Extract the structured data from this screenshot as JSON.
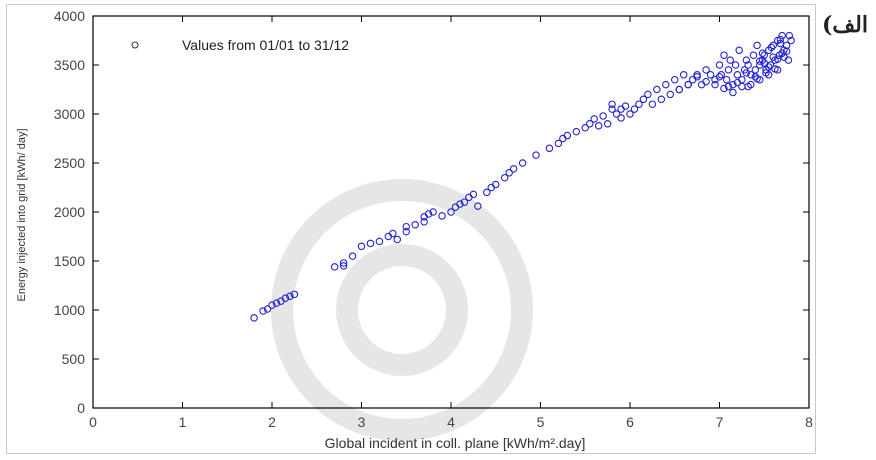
{
  "figure_label": "الف)",
  "chart_data": {
    "type": "scatter",
    "legend": {
      "text": "Values from 01/01 to 31/12",
      "placement": "top-left"
    },
    "xlabel": "Global incident in coll. plane [kWh/m².day]",
    "ylabel": "Energy  injected  into  grid  [kWh/ day]",
    "xlim": [
      0,
      8
    ],
    "ylim": [
      0,
      4000
    ],
    "xticks": [
      0,
      1,
      2,
      3,
      4,
      5,
      6,
      7,
      8
    ],
    "yticks": [
      0,
      500,
      1000,
      1500,
      2000,
      2500,
      3000,
      3500,
      4000
    ],
    "grid": false,
    "marker_color": "#2424d0",
    "series": [
      {
        "x": [
          1.8,
          1.9,
          1.95,
          2.0,
          2.05,
          2.1,
          2.15,
          2.2,
          2.25,
          2.7,
          2.8,
          2.8,
          2.9,
          3.0,
          3.1,
          3.2,
          3.3,
          3.35,
          3.4,
          3.5,
          3.5,
          3.6,
          3.7,
          3.7,
          3.75,
          3.8,
          3.9,
          4.0,
          4.05,
          4.1,
          4.15,
          4.2,
          4.25,
          4.3,
          4.4,
          4.45,
          4.5,
          4.6,
          4.65,
          4.7,
          4.8,
          4.95,
          5.1,
          5.2,
          5.25,
          5.3,
          5.4,
          5.5,
          5.55,
          5.6,
          5.65,
          5.7,
          5.75,
          5.8,
          5.8,
          5.85,
          5.9,
          5.9,
          5.95,
          6.0,
          6.05,
          6.1,
          6.15,
          6.2,
          6.25,
          6.3,
          6.35,
          6.4,
          6.45,
          6.5,
          6.55,
          6.6,
          6.65,
          6.7,
          6.75,
          6.8,
          6.85,
          6.9,
          6.95,
          7.0,
          7.02,
          7.05,
          7.08,
          7.1,
          7.12,
          7.15,
          7.18,
          7.2,
          7.22,
          7.25,
          7.28,
          7.3,
          7.32,
          7.35,
          7.38,
          7.4,
          7.42,
          7.45,
          7.48,
          7.5,
          7.52,
          7.55,
          7.57,
          7.6,
          7.62,
          7.65,
          7.67,
          7.7,
          7.72,
          7.75,
          7.77,
          7.8,
          7.35,
          7.45,
          7.55,
          7.65,
          7.5,
          7.6,
          7.7,
          7.4,
          7.3,
          7.2,
          7.1,
          7.0,
          7.55,
          7.65,
          7.75,
          7.45,
          7.58,
          7.68,
          6.95,
          7.05,
          7.15,
          7.25,
          6.85,
          6.75,
          6.65,
          6.55,
          7.62,
          7.72,
          7.52,
          7.42,
          7.32,
          7.68,
          7.78,
          7.48
        ],
        "y": [
          920,
          990,
          1010,
          1050,
          1070,
          1090,
          1120,
          1140,
          1160,
          1440,
          1450,
          1480,
          1550,
          1650,
          1680,
          1700,
          1750,
          1780,
          1720,
          1800,
          1850,
          1870,
          1900,
          1950,
          1980,
          2000,
          1960,
          2000,
          2050,
          2080,
          2100,
          2150,
          2180,
          2060,
          2200,
          2250,
          2280,
          2350,
          2400,
          2440,
          2500,
          2580,
          2650,
          2700,
          2750,
          2780,
          2820,
          2860,
          2900,
          2950,
          2880,
          2980,
          2900,
          3050,
          3100,
          3000,
          3050,
          2960,
          3080,
          3000,
          3050,
          3100,
          3150,
          3200,
          3100,
          3250,
          3150,
          3300,
          3200,
          3350,
          3250,
          3400,
          3300,
          3350,
          3400,
          3300,
          3450,
          3400,
          3350,
          3500,
          3400,
          3600,
          3350,
          3450,
          3550,
          3300,
          3500,
          3400,
          3650,
          3350,
          3450,
          3550,
          3500,
          3400,
          3600,
          3450,
          3700,
          3500,
          3550,
          3600,
          3450,
          3650,
          3500,
          3700,
          3550,
          3750,
          3600,
          3800,
          3650,
          3700,
          3550,
          3750,
          3300,
          3350,
          3400,
          3450,
          3520,
          3580,
          3620,
          3380,
          3420,
          3320,
          3280,
          3380,
          3480,
          3560,
          3640,
          3540,
          3680,
          3720,
          3300,
          3260,
          3220,
          3280,
          3330,
          3380,
          3300,
          3250,
          3460,
          3580,
          3420,
          3360,
          3280,
          3760,
          3800,
          3620
        ]
      }
    ]
  }
}
